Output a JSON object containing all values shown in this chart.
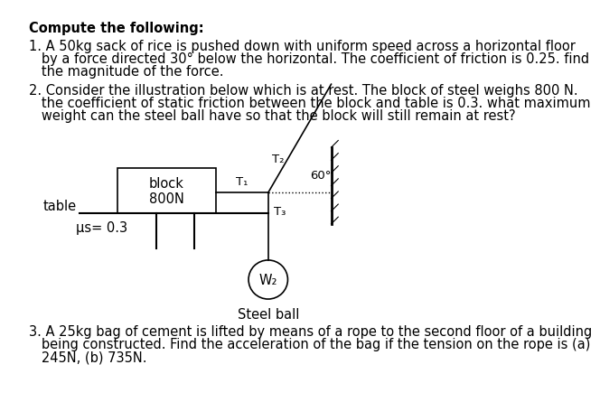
{
  "title": "Compute the following:",
  "bg_color": "#ffffff",
  "text_color": "#000000",
  "problem1_line1": "1. A 50kg sack of rice is pushed down with uniform speed across a horizontal floor",
  "problem1_line2": "   by a force directed 30° below the horizontal. The coefficient of friction is 0.25. find",
  "problem1_line3": "   the magnitude of the force.",
  "problem2_line1": "2. Consider the illustration below which is at rest. The block of steel weighs 800 N.",
  "problem2_line2": "   the coefficient of static friction between the block and table is 0.3. what maximum",
  "problem2_line3": "   weight can the steel ball have so that the block will still remain at rest?",
  "problem3_line1": "3. A 25kg bag of cement is lifted by means of a rope to the second floor of a building",
  "problem3_line2": "   being constructed. Find the acceleration of the bag if the tension on the rope is (a)",
  "problem3_line3": "   245N, (b) 735N.",
  "T1_label": "T₁",
  "T2_label": "T₂",
  "T3_label": "T₃",
  "angle_label": "60°",
  "block_label": "block\n800N",
  "table_label": "table",
  "mu_label": "μs= 0.3",
  "ball_label": "W₂",
  "steel_ball_label": "Steel ball"
}
